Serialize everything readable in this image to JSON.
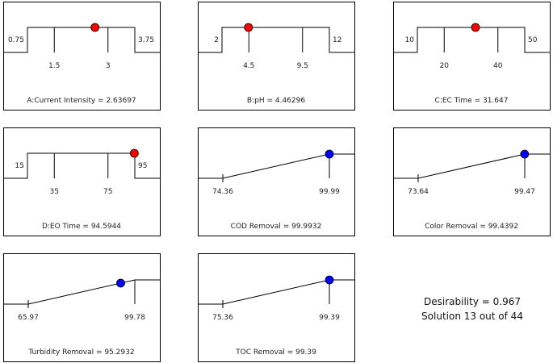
{
  "chart_data": {
    "type": "desirability-ramps",
    "factors": [
      {
        "title": "A:Current Intensity = 2.63697",
        "low": 0.75,
        "high": 3.75,
        "ticks": [
          "1.5",
          "3"
        ],
        "value": 2.63697,
        "marker_color": "#ff0000"
      },
      {
        "title": "B:pH = 4.46296",
        "low": 2,
        "high": 12,
        "ticks": [
          "4.5",
          "9.5"
        ],
        "value": 4.46296,
        "marker_color": "#ff0000"
      },
      {
        "title": "C:EC Time  = 31.647",
        "low": 10,
        "high": 50,
        "ticks": [
          "20",
          "40"
        ],
        "value": 31.647,
        "marker_color": "#ff0000"
      },
      {
        "title": "D:EO Time  = 94.5944",
        "low": 15,
        "high": 95,
        "ticks": [
          "35",
          "75"
        ],
        "value": 94.5944,
        "marker_color": "#ff0000"
      }
    ],
    "responses": [
      {
        "title": "COD Removal = 99.9932",
        "min": "74.36",
        "max": "99.99",
        "value": 99.9932,
        "marker_color": "#0000ff"
      },
      {
        "title": "Color Removal = 99.4392",
        "min": "73.64",
        "max": "99.47",
        "value": 99.4392,
        "marker_color": "#0000ff"
      },
      {
        "title": "Turbidity Removal = 95.2932",
        "min": "65.97",
        "max": "99.78",
        "value": 95.2932,
        "marker_color": "#0000ff"
      },
      {
        "title": "TOC Removal = 99.39",
        "min": "75.36",
        "max": "99.39",
        "value": 99.39,
        "marker_color": "#0000ff"
      }
    ],
    "desirability": "Desirability = 0.967",
    "solution": "Solution 13 out of 44"
  }
}
